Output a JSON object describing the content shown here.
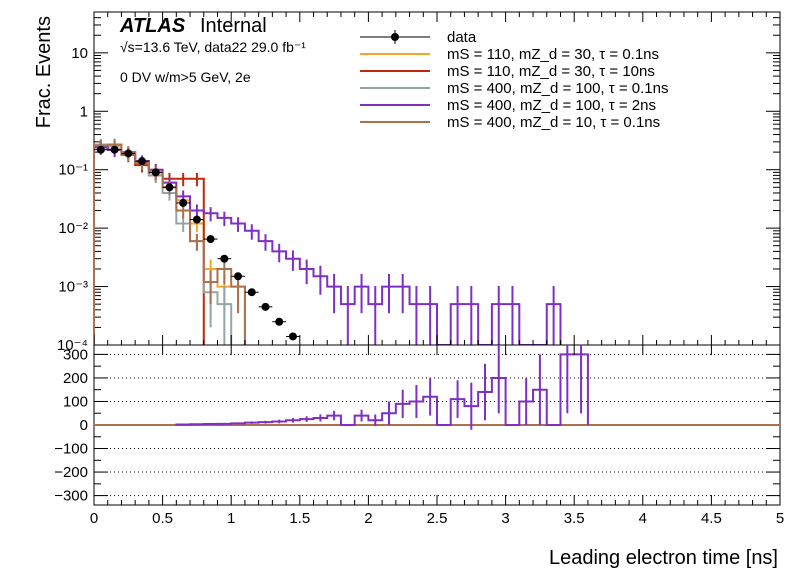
{
  "chart_data": {
    "type": "line",
    "atlas_label": "ATLAS",
    "atlas_sublabel": "Internal",
    "info_lines": [
      "√s=13.6 TeV, data22 29.0 fb⁻¹",
      "0 DV w/m>5 GeV, 2e"
    ],
    "xlabel": "Leading electron time [ns]",
    "ylabel": "Frac. Events",
    "xlim": [
      0,
      5
    ],
    "top_panel": {
      "yscale": "log",
      "ylim": [
        0.0001,
        50
      ],
      "ytick_labels": [
        "10⁻⁴",
        "10⁻³",
        "10⁻²",
        "10⁻¹",
        "1",
        "10"
      ]
    },
    "bottom_panel": {
      "ylim": [
        -340,
        340
      ],
      "ytick_labels": [
        "−300",
        "−200",
        "−100",
        "0",
        "100",
        "200",
        "300"
      ]
    },
    "xtick_labels": [
      "0",
      "0.5",
      "1",
      "1.5",
      "2",
      "2.5",
      "3",
      "3.5",
      "4",
      "4.5",
      "5"
    ],
    "legend": {
      "placement": "top-right",
      "entries": [
        {
          "label": "data",
          "color": "#000000",
          "marker": "circle"
        },
        {
          "label": "mS = 110, mZ_d = 30, τ = 0.1ns",
          "color": "#f5a623"
        },
        {
          "label": "mS = 110, mZ_d = 30, τ = 10ns",
          "color": "#c0280a"
        },
        {
          "label": "mS = 400, mZ_d = 100, τ = 0.1ns",
          "color": "#95a5a6"
        },
        {
          "label": "mS = 400, mZ_d = 100, τ = 2ns",
          "color": "#7f2fc4"
        },
        {
          "label": "mS = 400, mZ_d = 10, τ = 0.1ns",
          "color": "#a97150"
        }
      ]
    },
    "bin_width": 0.1,
    "data_points": {
      "x": [
        0.05,
        0.15,
        0.25,
        0.35,
        0.45,
        0.55,
        0.65,
        0.75,
        0.85,
        0.95,
        1.05,
        1.15,
        1.25,
        1.35,
        1.45
      ],
      "y": [
        0.22,
        0.22,
        0.19,
        0.14,
        0.09,
        0.05,
        0.027,
        0.014,
        0.0065,
        0.003,
        0.0015,
        0.0008,
        0.00045,
        0.00025,
        0.00014
      ]
    },
    "series": [
      {
        "name": "mS = 110, mZ_d = 30, τ = 0.1ns",
        "color": "#f5a623",
        "values": [
          0.25,
          0.25,
          0.2,
          0.14,
          0.1,
          0.06,
          0.03,
          0.012,
          0.002,
          0.001,
          0.001
        ]
      },
      {
        "name": "mS = 110, mZ_d = 30, τ = 10ns",
        "color": "#c0280a",
        "values": [
          0.25,
          0.22,
          0.18,
          0.12,
          0.08,
          0.07,
          0.07,
          0.07
        ]
      },
      {
        "name": "mS = 400, mZ_d = 100, τ = 0.1ns",
        "color": "#95a5a6",
        "values": [
          0.27,
          0.26,
          0.19,
          0.14,
          0.08,
          0.04,
          0.012,
          0.006,
          0.0008,
          0.0005
        ]
      },
      {
        "name": "mS = 400, mZ_d = 100, τ = 2ns",
        "color": "#7f2fc4",
        "values": [
          0.24,
          0.22,
          0.2,
          0.14,
          0.1,
          0.06,
          0.035,
          0.02,
          0.018,
          0.015,
          0.012,
          0.009,
          0.006,
          0.004,
          0.003,
          0.002,
          0.0015,
          0.001,
          0.0005,
          0.001,
          0.0005,
          0.001,
          0.001,
          0.0005,
          0.0005,
          0.0001,
          0.0005,
          0.0005,
          0.0001,
          0.0005,
          0.0005,
          0.0001,
          0.0001,
          0.0005
        ]
      },
      {
        "name": "mS = 400, mZ_d = 10, τ = 0.1ns",
        "color": "#a97150",
        "values": [
          0.26,
          0.27,
          0.2,
          0.13,
          0.09,
          0.05,
          0.02,
          0.006,
          0.0012,
          0.002,
          0.001
        ]
      }
    ],
    "ratio_series": {
      "name": "mS = 400, mZ_d = 100, τ = 2ns",
      "color": "#7f2fc4",
      "x_start": 0.6,
      "values": [
        2,
        3,
        4,
        5,
        7,
        10,
        12,
        15,
        20,
        25,
        30,
        40,
        0,
        40,
        20,
        50,
        90,
        100,
        120,
        0,
        110,
        80,
        140,
        200,
        0,
        100,
        150,
        0,
        300,
        300
      ],
      "errors": [
        2,
        2,
        3,
        3,
        4,
        5,
        6,
        8,
        10,
        12,
        15,
        20,
        0,
        25,
        25,
        50,
        60,
        70,
        80,
        0,
        80,
        100,
        120,
        150,
        0,
        100,
        150,
        0,
        250,
        250
      ]
    },
    "ratio_baseline": {
      "value": 0,
      "color": "#a97150"
    }
  }
}
